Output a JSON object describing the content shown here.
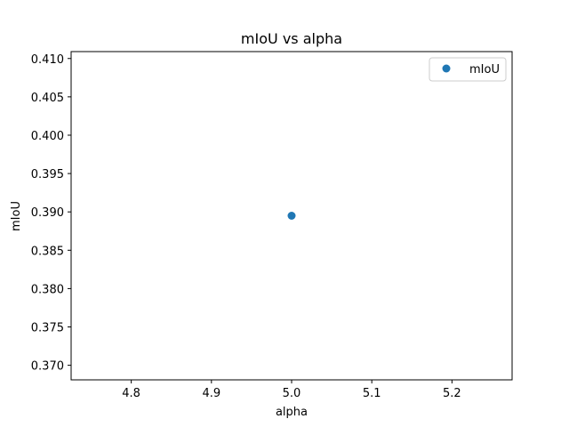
{
  "chart_data": {
    "type": "scatter",
    "title": "mIoU vs alpha",
    "xlabel": "alpha",
    "ylabel": "mIoU",
    "xlim": [
      4.725,
      5.275
    ],
    "ylim": [
      0.3681,
      0.4109
    ],
    "xticks": [
      "4.8",
      "4.9",
      "5.0",
      "5.1",
      "5.2"
    ],
    "xtick_values": [
      4.8,
      4.9,
      5.0,
      5.1,
      5.2
    ],
    "yticks": [
      "0.370",
      "0.375",
      "0.380",
      "0.385",
      "0.390",
      "0.395",
      "0.400",
      "0.405",
      "0.410"
    ],
    "ytick_values": [
      0.37,
      0.375,
      0.38,
      0.385,
      0.39,
      0.395,
      0.4,
      0.405,
      0.41
    ],
    "grid": false,
    "legend_position": "top-right",
    "series": [
      {
        "name": "mIoU",
        "color": "#1f77b4",
        "points": [
          {
            "x": 5.0,
            "y": 0.3895
          }
        ]
      }
    ]
  }
}
